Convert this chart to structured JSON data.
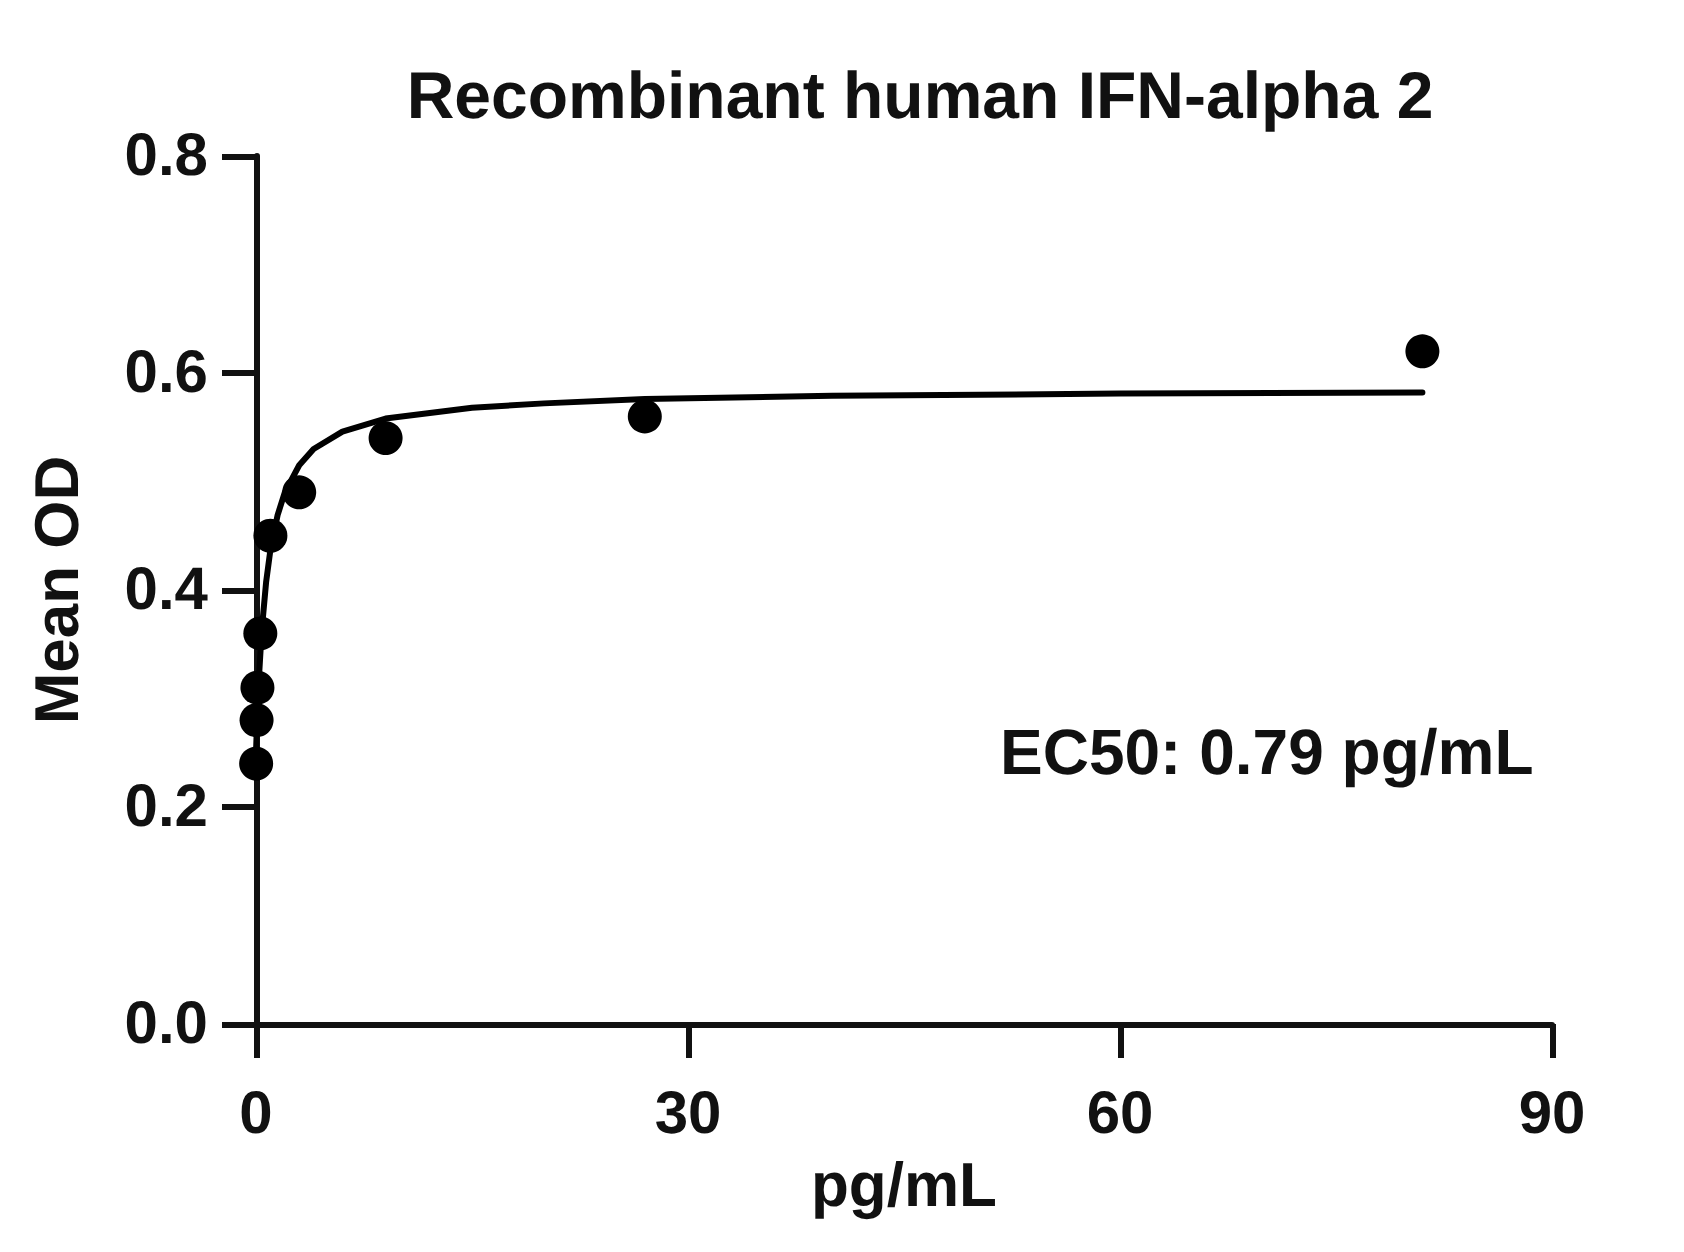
{
  "chart_data": {
    "type": "scatter",
    "title": "Recombinant human IFN-alpha 2",
    "xlabel": "pg/mL",
    "ylabel": "Mean OD",
    "annotations": [
      "EC50: 0.79 pg/mL"
    ],
    "xlim": [
      0,
      90
    ],
    "xticks": [
      0,
      30,
      60,
      90
    ],
    "ylim": [
      0,
      0.8
    ],
    "yticks": [
      {
        "value": 0,
        "label": "0.0"
      },
      0.2,
      0.4,
      0.6,
      0.8
    ],
    "marker": "circle",
    "series": [
      {
        "color": "#000000",
        "x": [
          0.01,
          0.04,
          0.1,
          0.3,
          1,
          3,
          9,
          27,
          81
        ],
        "values": [
          0.24,
          0.28,
          0.31,
          0.36,
          0.45,
          0.49,
          0.54,
          0.56,
          0.62
        ]
      },
      {
        "type": "line",
        "color": "#000000",
        "marker": "none",
        "line_style": "solid",
        "x": [
          0.01,
          0.05,
          0.1,
          0.2,
          0.4,
          0.7,
          1,
          1.5,
          2,
          3,
          4,
          6,
          9,
          15,
          20,
          27,
          40,
          60,
          81
        ],
        "values": [
          0.254,
          0.27,
          0.288,
          0.318,
          0.363,
          0.407,
          0.437,
          0.469,
          0.49,
          0.515,
          0.53,
          0.546,
          0.558,
          0.568,
          0.572,
          0.576,
          0.579,
          0.581,
          0.582
        ]
      }
    ]
  }
}
